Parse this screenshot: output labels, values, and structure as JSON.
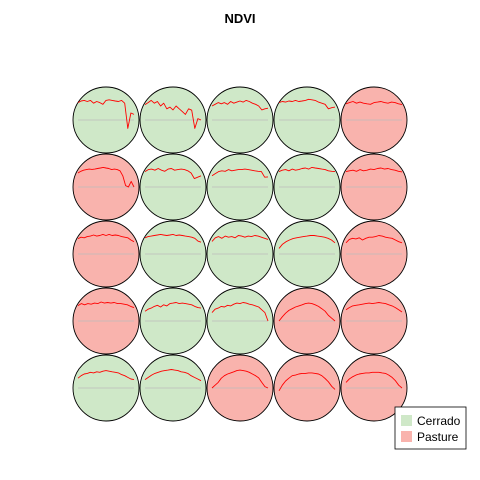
{
  "chart_data": {
    "type": "line",
    "chart_kind": "som-grid-ndvi",
    "title": "NDVI",
    "grid": {
      "rows": 5,
      "cols": 5
    },
    "neurons": [
      [
        "Cerrado",
        "Cerrado",
        "Cerrado",
        "Cerrado",
        "Pasture"
      ],
      [
        "Pasture",
        "Cerrado",
        "Cerrado",
        "Cerrado",
        "Pasture"
      ],
      [
        "Pasture",
        "Cerrado",
        "Cerrado",
        "Cerrado",
        "Pasture"
      ],
      [
        "Pasture",
        "Cerrado",
        "Cerrado",
        "Pasture",
        "Pasture"
      ],
      [
        "Cerrado",
        "Cerrado",
        "Pasture",
        "Pasture",
        "Pasture"
      ]
    ],
    "legend": {
      "position": "bottom-right",
      "entries": [
        {
          "label": "Cerrado",
          "color": "#cfe8c8"
        },
        {
          "label": "Pasture",
          "color": "#f9b3ad"
        }
      ]
    },
    "line_color": "#ff0000",
    "baseline_color": "#bbbbbb",
    "border_color": "#000000",
    "series": [
      [
        [
          0.62,
          0.68,
          0.7,
          0.66,
          0.7,
          0.6,
          0.66,
          0.62,
          0.56,
          0.7,
          0.72,
          0.7,
          0.68,
          0.66,
          0.7,
          0.6,
          -0.3,
          0.25,
          0.2
        ],
        [
          0.5,
          0.56,
          0.6,
          0.62,
          0.64,
          0.63,
          0.64,
          0.66,
          0.68,
          0.7,
          0.68,
          0.66,
          0.62,
          0.64,
          0.62,
          0.58,
          0.4,
          0.05,
          0.0,
          0.2,
          0.0
        ],
        [
          0.55,
          0.6,
          0.58,
          0.62,
          0.64,
          0.68,
          0.64,
          0.66,
          0.7,
          0.66,
          0.7,
          0.66,
          0.68,
          0.66,
          0.62,
          0.6,
          0.58,
          0.5,
          0.44
        ],
        [
          0.55,
          0.62,
          0.58,
          0.62,
          0.6,
          0.64,
          0.62,
          0.68,
          0.64,
          0.66,
          0.64,
          0.66,
          0.62,
          0.62,
          0.6,
          0.58,
          0.52,
          0.48
        ],
        [
          0.35,
          0.44,
          0.5,
          0.52,
          0.56,
          0.54,
          0.58,
          0.56,
          0.6,
          0.62,
          0.6,
          0.58,
          0.56,
          0.54,
          0.48,
          0.44,
          0.38,
          0.32,
          0.3
        ]
      ],
      [
        [
          0.55,
          0.62,
          0.7,
          0.6,
          0.66,
          0.5,
          0.6,
          0.4,
          0.46,
          0.36,
          0.5,
          0.4,
          0.3,
          0.2,
          0.4,
          0.35,
          -0.3,
          0.05,
          0.0
        ],
        [
          0.55,
          0.62,
          0.64,
          0.6,
          0.66,
          0.6,
          0.56,
          0.64,
          0.66,
          0.6,
          0.62,
          0.64,
          0.62,
          0.58,
          0.5,
          0.3,
          0.35,
          0.4
        ],
        [
          0.58,
          0.62,
          0.64,
          0.66,
          0.68,
          0.7,
          0.68,
          0.66,
          0.68,
          0.7,
          0.66,
          0.68,
          0.66,
          0.64,
          0.62,
          0.6,
          0.56,
          0.46,
          0.42
        ],
        [
          0.35,
          0.42,
          0.46,
          0.52,
          0.56,
          0.5,
          0.58,
          0.54,
          0.62,
          0.64,
          0.66,
          0.62,
          0.64,
          0.62,
          0.6,
          0.58,
          0.52,
          0.48,
          0.46
        ],
        [
          0.3,
          0.38,
          0.46,
          0.52,
          0.56,
          0.6,
          0.62,
          0.64,
          0.66,
          0.64,
          0.62,
          0.58,
          0.56,
          0.52,
          0.44,
          0.38,
          0.32,
          0.26
        ]
      ],
      [
        [
          0.5,
          0.56,
          0.62,
          0.58,
          0.62,
          0.56,
          0.66,
          0.6,
          0.64,
          0.68,
          0.64,
          0.7,
          0.66,
          0.6,
          0.56,
          0.5,
          0.36,
          0.4,
          0.42
        ],
        [
          0.4,
          0.48,
          0.55,
          0.58,
          0.56,
          0.62,
          0.58,
          0.6,
          0.62,
          0.62,
          0.64,
          0.62,
          0.6,
          0.58,
          0.56,
          0.55,
          0.35,
          0.36
        ],
        [
          0.45,
          0.58,
          0.62,
          0.56,
          0.64,
          0.6,
          0.62,
          0.58,
          0.66,
          0.64,
          0.6,
          0.64,
          0.62,
          0.66,
          0.64,
          0.6,
          0.56,
          0.52
        ],
        [
          0.3,
          0.42,
          0.46,
          0.52,
          0.5,
          0.56,
          0.54,
          0.6,
          0.64,
          0.62,
          0.66,
          0.64,
          0.6,
          0.58,
          0.54,
          0.5,
          0.4,
          0.3,
          0.0
        ],
        [
          0.0,
          0.1,
          0.2,
          0.35,
          0.44,
          0.5,
          0.54,
          0.58,
          0.62,
          0.64,
          0.62,
          0.6,
          0.56,
          0.5,
          0.44,
          0.36,
          0.2,
          0.05,
          0.0
        ]
      ],
      [
        [
          0.62,
          0.66,
          0.64,
          0.68,
          0.66,
          0.7,
          0.66,
          0.68,
          0.7,
          0.74,
          0.72,
          0.7,
          0.64,
          0.6,
          0.56,
          0.4,
          0.44,
          0.46
        ],
        [
          0.55,
          0.6,
          0.62,
          0.58,
          0.64,
          0.6,
          0.62,
          0.66,
          0.68,
          0.64,
          0.7,
          0.68,
          0.66,
          0.64,
          0.62,
          0.58,
          0.56,
          0.55
        ],
        [
          0.2,
          0.35,
          0.44,
          0.5,
          0.55,
          0.58,
          0.6,
          0.62,
          0.64,
          0.66,
          0.66,
          0.64,
          0.62,
          0.6,
          0.56,
          0.5,
          0.4
        ],
        [
          0.0,
          0.15,
          0.28,
          0.38,
          0.44,
          0.5,
          0.54,
          0.58,
          0.62,
          0.64,
          0.62,
          0.58,
          0.52,
          0.44,
          0.35,
          0.2,
          0.1,
          0.0
        ],
        [
          -0.1,
          0.1,
          0.25,
          0.35,
          0.44,
          0.46,
          0.5,
          0.52,
          0.52,
          0.54,
          0.54,
          0.52,
          0.5,
          0.44,
          0.34,
          0.22,
          0.06,
          -0.05
        ]
      ],
      [
        [
          0.58,
          0.62,
          0.66,
          0.6,
          0.64,
          0.6,
          0.58,
          0.56,
          0.62,
          0.64,
          0.66,
          0.62,
          0.6,
          0.64,
          0.62,
          0.58,
          0.55
        ],
        [
          0.55,
          0.58,
          0.6,
          0.56,
          0.62,
          0.58,
          0.6,
          0.64,
          0.62,
          0.66,
          0.68,
          0.64,
          0.66,
          0.62,
          0.6,
          0.56,
          0.54
        ],
        [
          0.4,
          0.52,
          0.56,
          0.54,
          0.58,
          0.5,
          0.56,
          0.6,
          0.6,
          0.62,
          0.66,
          0.64,
          0.6,
          0.58,
          0.56,
          0.5,
          0.44,
          0.4
        ],
        [
          0.4,
          0.48,
          0.54,
          0.56,
          0.58,
          0.6,
          0.62,
          0.64,
          0.62,
          0.64,
          0.66,
          0.64,
          0.62,
          0.58,
          0.54,
          0.48,
          0.4,
          0.32
        ],
        [
          0.2,
          0.32,
          0.4,
          0.46,
          0.5,
          0.52,
          0.54,
          0.54,
          0.56,
          0.56,
          0.56,
          0.54,
          0.52,
          0.46,
          0.38,
          0.26,
          0.1,
          0.0
        ]
      ]
    ]
  }
}
